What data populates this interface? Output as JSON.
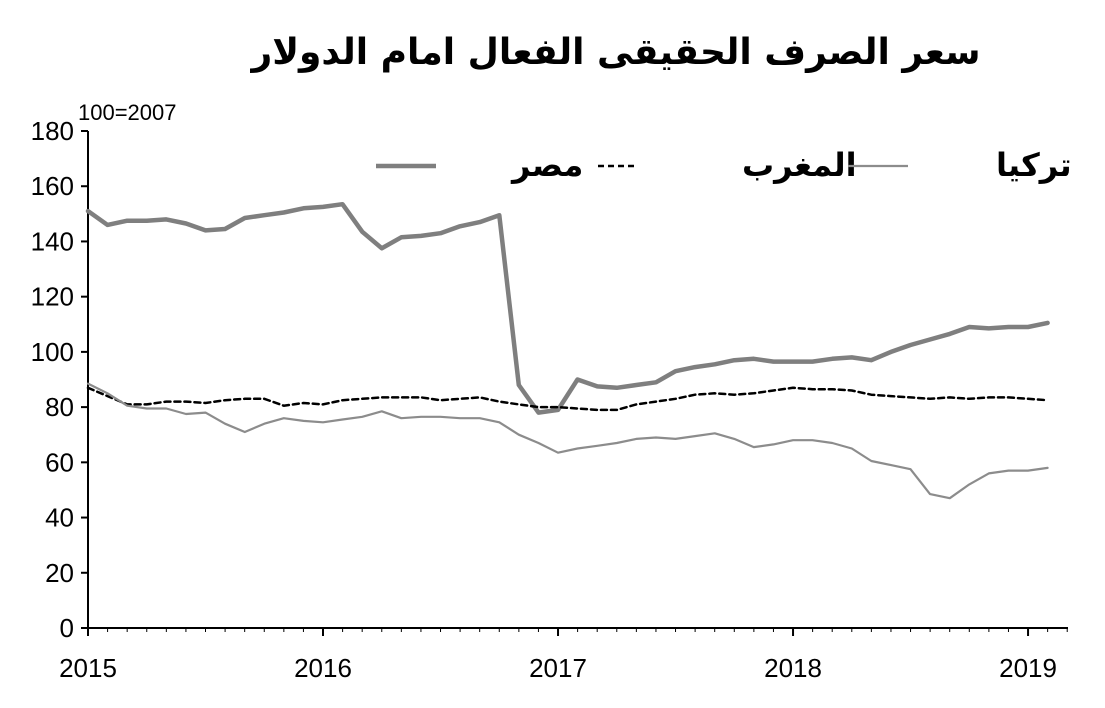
{
  "chart_data": {
    "type": "line",
    "title": "سعر الصرف الحقيقى الفعال امام الدولار",
    "unit_label": "100=2007",
    "ylim": [
      0,
      180
    ],
    "yticks": [
      0,
      20,
      40,
      60,
      80,
      100,
      120,
      140,
      160,
      180
    ],
    "xlim": [
      2015,
      2019.17
    ],
    "xticks": [
      "2015",
      "2016",
      "2017",
      "2018",
      "2019"
    ],
    "xticks_values": [
      2015,
      2016,
      2017,
      2018,
      2019
    ],
    "grid": false,
    "legend_position": "top",
    "x": [
      2015.0,
      2015.083,
      2015.167,
      2015.25,
      2015.333,
      2015.417,
      2015.5,
      2015.583,
      2015.667,
      2015.75,
      2015.833,
      2015.917,
      2016.0,
      2016.083,
      2016.167,
      2016.25,
      2016.333,
      2016.417,
      2016.5,
      2016.583,
      2016.667,
      2016.75,
      2016.833,
      2016.917,
      2017.0,
      2017.083,
      2017.167,
      2017.25,
      2017.333,
      2017.417,
      2017.5,
      2017.583,
      2017.667,
      2017.75,
      2017.833,
      2017.917,
      2018.0,
      2018.083,
      2018.167,
      2018.25,
      2018.333,
      2018.417,
      2018.5,
      2018.583,
      2018.667,
      2018.75,
      2018.833,
      2018.917,
      2019.0,
      2019.083
    ],
    "series": [
      {
        "name": "مصر",
        "color": "#7f7f7f",
        "style": "solid-thick",
        "values": [
          151,
          146,
          147.5,
          147.5,
          148,
          146.5,
          144,
          144.5,
          148.5,
          149.5,
          150.5,
          152,
          152.5,
          153.5,
          143.5,
          137.5,
          141.5,
          142,
          143,
          145.5,
          147,
          149.5,
          88,
          78,
          79,
          90,
          87.5,
          87,
          88,
          89,
          93,
          94.5,
          95.5,
          97,
          97.5,
          96.5,
          96.5,
          96.5,
          97.5,
          98,
          97,
          100,
          102.5,
          104.5,
          106.5,
          109,
          108.5,
          109,
          109,
          110.5
        ]
      },
      {
        "name": "المغرب",
        "color": "#000000",
        "style": "dashed",
        "values": [
          87,
          84,
          81,
          81,
          82,
          82,
          81.5,
          82.5,
          83,
          83,
          80.5,
          81.5,
          81,
          82.5,
          83,
          83.5,
          83.5,
          83.5,
          82.5,
          83,
          83.5,
          82,
          81,
          80,
          80,
          79.5,
          79,
          79,
          81,
          82,
          83,
          84.5,
          85,
          84.5,
          85,
          86,
          87,
          86.5,
          86.5,
          86,
          84.5,
          84,
          83.5,
          83,
          83.5,
          83,
          83.5,
          83.5,
          83,
          82.5
        ]
      },
      {
        "name": "تركيا",
        "color": "#8c8c8c",
        "style": "solid-thin",
        "values": [
          88.5,
          85,
          80.5,
          79.5,
          79.5,
          77.5,
          78,
          74,
          71,
          74,
          76,
          75,
          74.5,
          75.5,
          76.5,
          78.5,
          76,
          76.5,
          76.5,
          76,
          76,
          74.5,
          70,
          67,
          63.5,
          65,
          66,
          67,
          68.5,
          69,
          68.5,
          69.5,
          70.5,
          68.5,
          65.5,
          66.5,
          68,
          68,
          67,
          65,
          60.5,
          59,
          57.5,
          48.5,
          47,
          52,
          56,
          57,
          57,
          58
        ]
      }
    ]
  }
}
